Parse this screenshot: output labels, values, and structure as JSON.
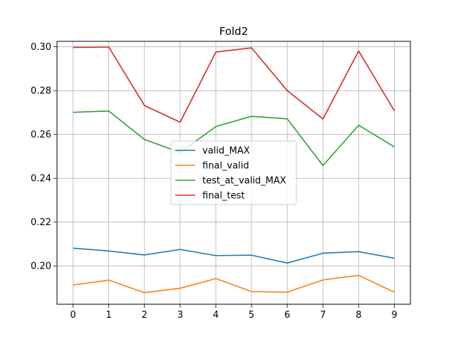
{
  "chart_data": {
    "type": "line",
    "title": "Fold2",
    "xlabel": "",
    "ylabel": "",
    "x": [
      0,
      1,
      2,
      3,
      4,
      5,
      6,
      7,
      8,
      9
    ],
    "xlim": [
      -0.45,
      9.45
    ],
    "ylim": [
      0.1825,
      0.3025
    ],
    "xticks": [
      0,
      1,
      2,
      3,
      4,
      5,
      6,
      7,
      8,
      9
    ],
    "yticks": [
      0.2,
      0.22,
      0.24,
      0.26,
      0.28,
      0.3
    ],
    "ytick_labels": [
      "0.20",
      "0.22",
      "0.24",
      "0.26",
      "0.28",
      "0.30"
    ],
    "grid": true,
    "legend_position": "center",
    "series": [
      {
        "name": "valid_MAX",
        "color": "#1f77b4",
        "values": [
          0.2081,
          0.2068,
          0.205,
          0.2075,
          0.2047,
          0.2049,
          0.2013,
          0.2058,
          0.2065,
          0.2035
        ]
      },
      {
        "name": "final_valid",
        "color": "#ff7f0e",
        "values": [
          0.1913,
          0.1935,
          0.1878,
          0.1898,
          0.1942,
          0.1883,
          0.188,
          0.1936,
          0.1957,
          0.188
        ]
      },
      {
        "name": "test_at_valid_MAX",
        "color": "#2ca02c",
        "values": [
          0.2701,
          0.2707,
          0.2577,
          0.2518,
          0.2636,
          0.2683,
          0.2671,
          0.2458,
          0.2642,
          0.2543
        ]
      },
      {
        "name": "final_test",
        "color": "#d62728",
        "values": [
          0.2997,
          0.2999,
          0.2732,
          0.2656,
          0.2976,
          0.2995,
          0.28,
          0.2671,
          0.2981,
          0.2708
        ]
      }
    ]
  }
}
